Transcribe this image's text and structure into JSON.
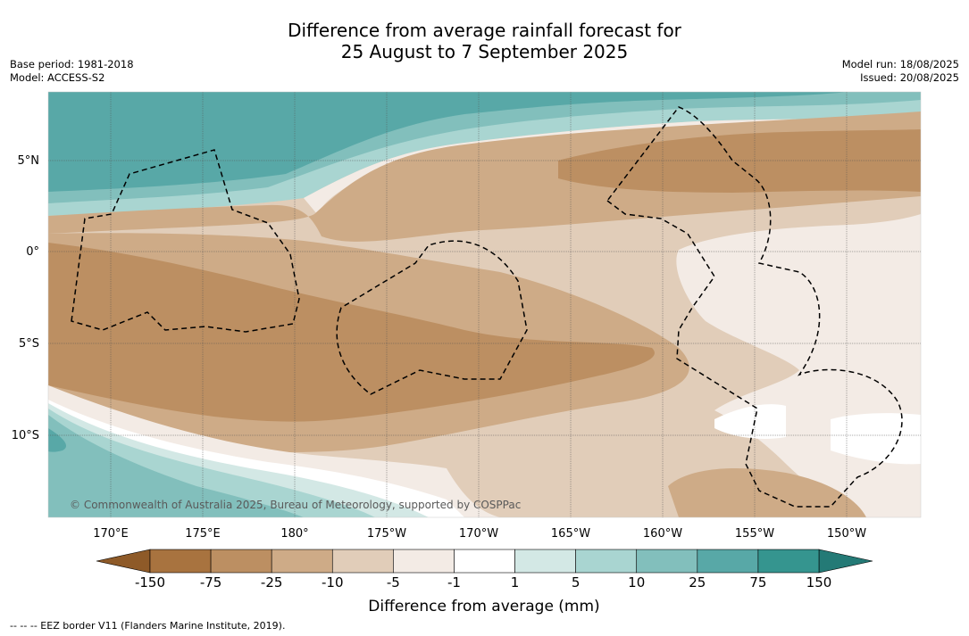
{
  "title": {
    "line1": "Difference from average rainfall forecast for",
    "line2": "25 August to 7 September 2025"
  },
  "meta": {
    "base_period": "Base period: 1981-2018",
    "model": "Model: ACCESS-S2",
    "model_run": "Model run: 18/08/2025",
    "issued": "Issued: 20/08/2025"
  },
  "map": {
    "lon_labels": [
      "170°E",
      "175°E",
      "180°",
      "175°W",
      "170°W",
      "165°W",
      "160°W",
      "155°W",
      "150°W"
    ],
    "lat_labels": [
      "5°N",
      "0°",
      "5°S",
      "10°S"
    ],
    "copyright": "© Commonwealth of Australia 2025, Bureau of Meteorology, supported by COSPPac"
  },
  "colorbar": {
    "title": "Difference from average (mm)",
    "ticks": [
      "-150",
      "-75",
      "-25",
      "-10",
      "-5",
      "-1",
      "1",
      "5",
      "10",
      "25",
      "75",
      "150"
    ],
    "colors": {
      "below_min": "#8e5a28",
      "bins": [
        "#a8733f",
        "#bc8f62",
        "#ceab87",
        "#e1cdb9",
        "#f3ebe5",
        "#ffffff",
        "#d3e8e5",
        "#a9d5d1",
        "#82bfbc",
        "#58a8a7",
        "#35958f"
      ],
      "above_max": "#247a76"
    }
  },
  "footer": {
    "legend": "--  --  -- EEZ border V11 (Flanders Marine Institute, 2019)."
  }
}
